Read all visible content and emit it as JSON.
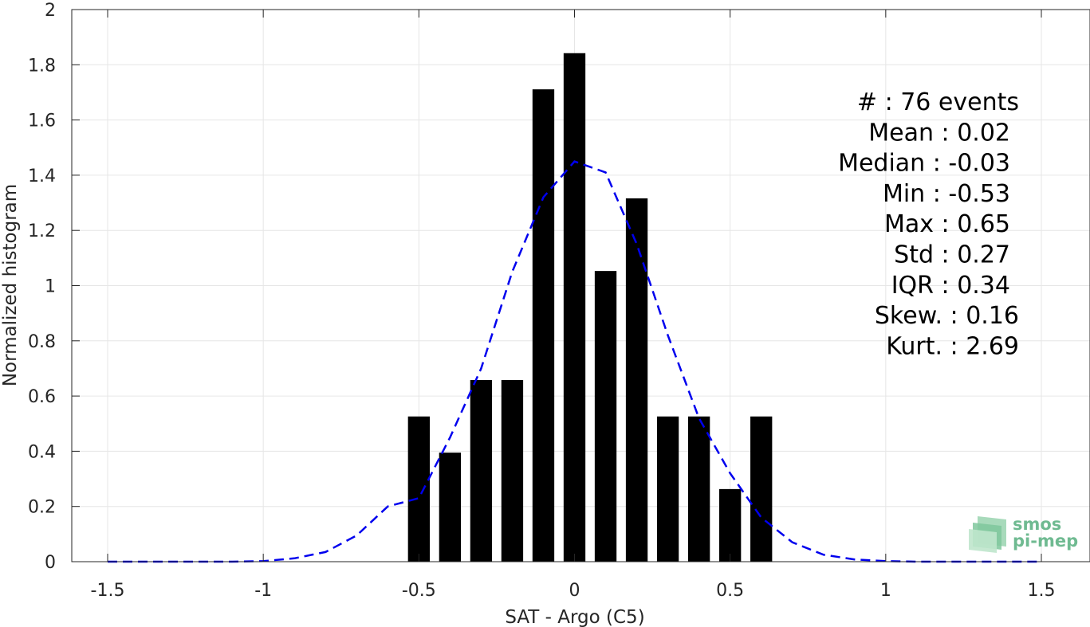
{
  "chart_data": {
    "type": "bar",
    "xlabel": "SAT - Argo (C5)",
    "ylabel": "Normalized histogram",
    "xlim": [
      -1.5,
      1.5
    ],
    "ylim": [
      0,
      2
    ],
    "grid": true,
    "x_ticks": [
      -1.5,
      -1,
      -0.5,
      0,
      0.5,
      1,
      1.5
    ],
    "x_tick_labels": [
      "-1.5",
      "-1",
      "-0.5",
      "0",
      "0.5",
      "1",
      "1.5"
    ],
    "y_ticks": [
      0,
      0.2,
      0.4,
      0.6,
      0.8,
      1,
      1.2,
      1.4,
      1.6,
      1.8,
      2
    ],
    "y_tick_labels": [
      "0",
      "0.2",
      "0.4",
      "0.6",
      "0.8",
      "1",
      "1.2",
      "1.4",
      "1.6",
      "1.8",
      "2"
    ],
    "bar_width": 0.07,
    "series": [
      {
        "type": "bar",
        "color": "#000000",
        "x": [
          -0.5,
          -0.4,
          -0.3,
          -0.2,
          -0.1,
          0.0,
          0.1,
          0.2,
          0.3,
          0.4,
          0.5,
          0.6
        ],
        "values": [
          0.526,
          0.395,
          0.658,
          0.658,
          1.711,
          1.842,
          1.053,
          1.316,
          0.526,
          0.526,
          0.263,
          0.526
        ]
      },
      {
        "type": "line",
        "style": "dashed",
        "color": "#0000ee",
        "x": [
          -1.5,
          -1.4,
          -1.3,
          -1.2,
          -1.1,
          -1.0,
          -0.9,
          -0.8,
          -0.7,
          -0.6,
          -0.5,
          -0.4,
          -0.3,
          -0.2,
          -0.1,
          0.0,
          0.1,
          0.2,
          0.3,
          0.4,
          0.5,
          0.6,
          0.7,
          0.8,
          0.9,
          1.0,
          1.1,
          1.2,
          1.3,
          1.4,
          1.5
        ],
        "values": [
          0,
          0,
          0,
          0,
          0,
          0.002,
          0.012,
          0.035,
          0.095,
          0.2,
          0.23,
          0.45,
          0.7,
          1.05,
          1.32,
          1.45,
          1.41,
          1.15,
          0.82,
          0.52,
          0.32,
          0.16,
          0.07,
          0.025,
          0.008,
          0.002,
          0,
          0,
          0,
          0,
          0
        ]
      }
    ],
    "annotations": [
      "#  : 76 events",
      "Mean : 0.02",
      "Median : -0.03",
      "Min : -0.53",
      "Max : 0.65",
      "Std : 0.27",
      "IQR : 0.34",
      "Skew. : 0.16",
      "Kurt. : 2.69"
    ]
  },
  "logo": {
    "line1": "smos",
    "line2": "pi-mep",
    "color": "#6fba91"
  }
}
